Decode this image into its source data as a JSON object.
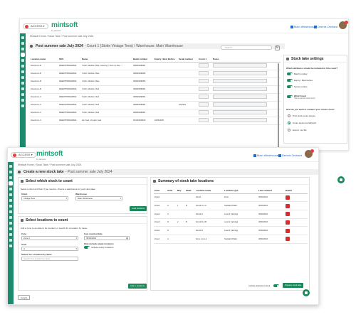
{
  "brand": {
    "name": "mintsoft",
    "tagline": "by access"
  },
  "top": {
    "account": "ACCESS",
    "main_warehouse": "Main Warehouse",
    "user_name": "Dennis Orchard"
  },
  "back": {
    "breadcrumb": "Mintsoft Home  /  Stock Take  /  Post summer sale July 2024",
    "title": "Post summer sale July 2024",
    "subtitle": "- Count 1 (Stoke Vintage Tees) / Warehouse: Main Warehouse",
    "search_placeholder": "Search...",
    "columns": [
      "Location name",
      "SKU",
      "Name",
      "Batch number",
      "Expiry / Best Before",
      "Serial number",
      "Count 1",
      "Notes"
    ],
    "rows": [
      [
        "Zone4-A-1-B",
        "WEEDTPRRAMMG9",
        "T-shirt, Medium, Blue, Lettering \"I love my blue...\"",
        "060000298304",
        "",
        "",
        "",
        ""
      ],
      [
        "Zone4-A-1-B",
        "WEEDTPRRAMMG9",
        "T-shirt, Medium, Blue",
        "060000298308",
        "",
        "",
        "",
        ""
      ],
      [
        "Zone4-A-1-B",
        "WEEDTPRRAMMG9",
        "T-shirt, Medium, Blue",
        "060000298305",
        "",
        "",
        "",
        ""
      ],
      [
        "Zone4-A-1-B",
        "WEEDTPRRAMMG9",
        "T-shirt, Medium, Red",
        "060000298304",
        "",
        "",
        "",
        ""
      ],
      [
        "Zone4-A-1-C",
        "WEEDTPRRAMMG9",
        "T-shirt, Medium, Red",
        "060000298304",
        "",
        "",
        "",
        ""
      ],
      [
        "Zone4-A-1-C",
        "WEEDTPRRAMMG9",
        "T-shirt, Medium, Red",
        "060000298304",
        "",
        "LIM7021",
        "",
        ""
      ],
      [
        "Zone4-A-1-C",
        "WEEDTPRRAMMG9",
        "T-shirt, Medium, Red",
        "060000298304",
        "",
        "",
        "",
        ""
      ],
      [
        "Zone4-A-1-C",
        "WEEDTPRRAMMG9",
        "Zen heel, 10 pack, beef",
        "WC000300810",
        "02/05/2025",
        "",
        "",
        ""
      ]
    ],
    "settings": {
      "title": "Stock take settings",
      "include_q": "Which attributes should be included in this count?",
      "toggles": [
        {
          "label": "Batch number"
        },
        {
          "label": "Expiry / Best before"
        },
        {
          "label": "Serial number"
        }
      ],
      "blind": {
        "label": "Blind Count",
        "desc": "Hide expected stock levels"
      },
      "conduct_q": "How do you want to conduct your stock count?",
      "options": [
        "Print stock count sheets",
        "Count stock into Mintsoft",
        "Export .csv file"
      ],
      "selected_option": 1
    }
  },
  "front": {
    "breadcrumb": "Mintsoft Home  /  Stock Take  /  Post summer sale July 2024",
    "title": "Create a new stock take",
    "subtitle": "- Post summer sale July 2024",
    "which_stock": {
      "title": "Select which stock to count",
      "hint": "Select a client and then if you need to, choose a warehouse for your stock take",
      "client_label": "Client",
      "client_value": "Vintage Tees",
      "warehouse_label": "Warehouse",
      "warehouse_value": "Main Warehouse",
      "load_button": "Load locations"
    },
    "locations": {
      "title": "Select locations to count",
      "hint": "Add a zone to an aisle to be counted, or search for a location by name.",
      "zone_label": "Zone",
      "zone_value": "Zone 4",
      "last_counted_label": "Last counted date",
      "last_counted_value": "30/04/2024",
      "include_empty_title": "Only include empty locations",
      "include_empty_label": "Include empty locations",
      "aisle_label": "Aisle",
      "aisle_value": "A",
      "search_label": "Search for a location by name",
      "search_placeholder": "Search for a location by name",
      "add_button": "Add to locations"
    },
    "summary": {
      "title": "Summary of stock take locations",
      "columns": [
        "Zone",
        "Aisle",
        "Bay",
        "Shelf",
        "Location name",
        "Location type",
        "Last counted",
        "Delete"
      ],
      "rows": [
        [
          "Zone1",
          "",
          "",
          "",
          "Zone1",
          "Zone",
          "30/04/2024"
        ],
        [
          "Zone4",
          "A",
          "1",
          "B",
          "Zone4-A-1-A",
          "Standard Pallet",
          "30/04/2024"
        ],
        [
          "Zone2",
          "C",
          "",
          "",
          "Zone2-C",
          "Level 2 (racking)",
          "30/04/2024"
        ],
        [
          "Zone3",
          "D",
          "2",
          "B",
          "Zone3-D-2-B",
          "Level 2 (racking)",
          "30/04/2024"
        ],
        [
          "Zone4",
          "D",
          "",
          "",
          "Zone2-D",
          "Level 2 (racking)",
          "30/04/2024"
        ],
        [
          "Zone1",
          "A",
          "",
          "",
          "Zone 1-A-1-4",
          "Standard Pallet",
          "30/04/2024"
        ]
      ],
      "include_allocated": "Include allocated stock",
      "prepare_button": "Prepare stock take"
    },
    "cancel": "Cancel"
  }
}
